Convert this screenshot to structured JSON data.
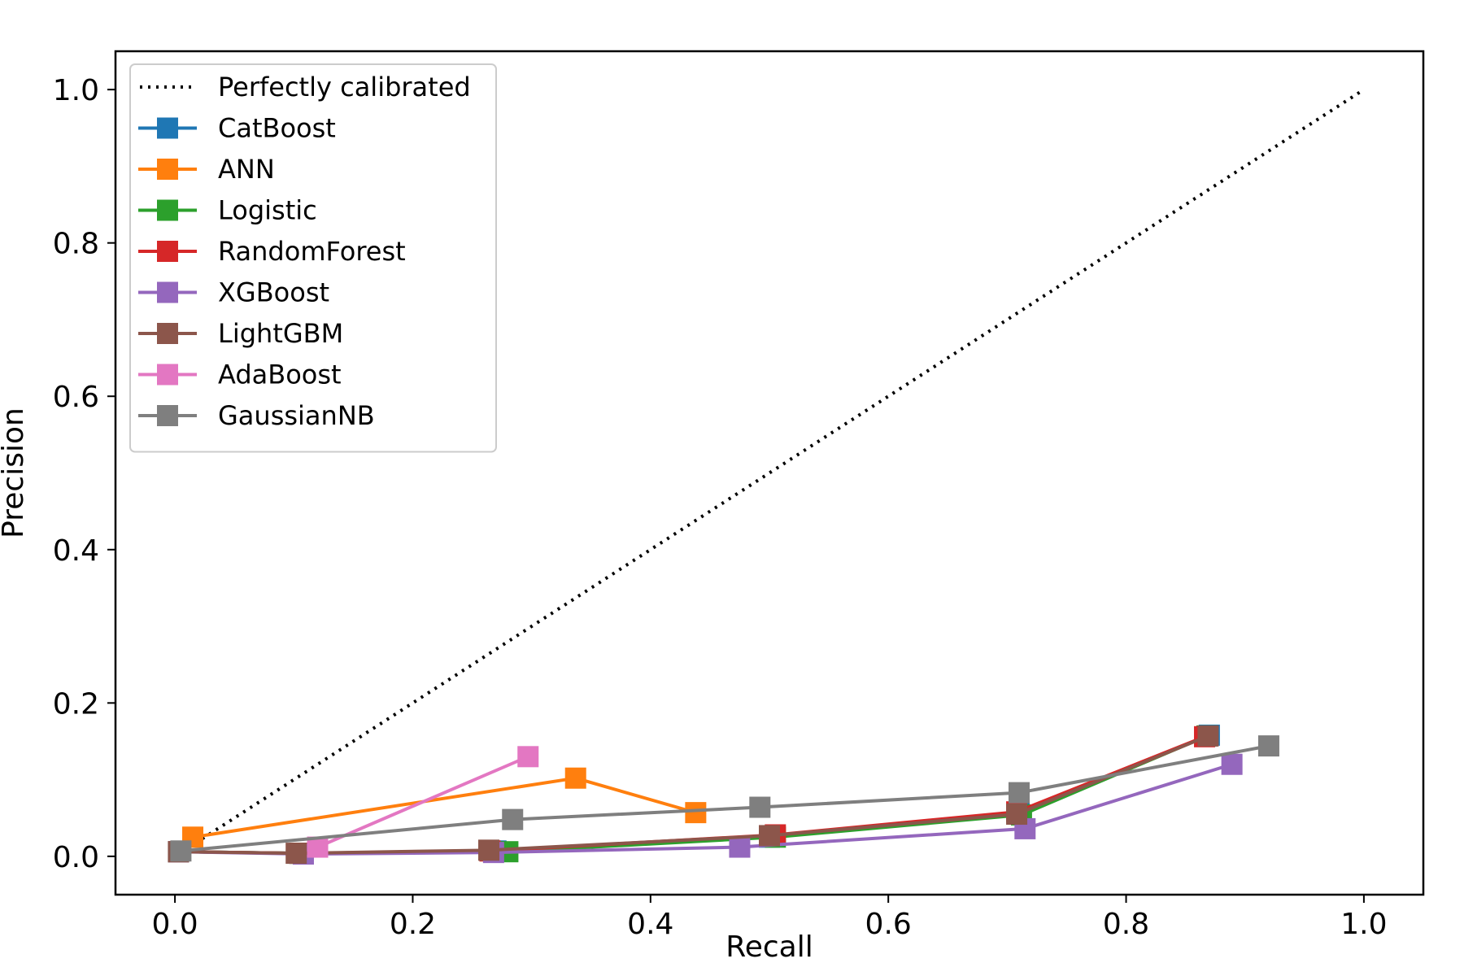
{
  "chart_data": {
    "type": "line",
    "title": "",
    "xlabel": "Recall",
    "ylabel": "Precision",
    "xlim": [
      -0.05,
      1.05
    ],
    "ylim": [
      -0.05,
      1.05
    ],
    "xticks": [
      0.0,
      0.2,
      0.4,
      0.6,
      0.8,
      1.0
    ],
    "yticks": [
      0.0,
      0.2,
      0.4,
      0.6,
      0.8,
      1.0
    ],
    "xtick_labels": [
      "0.0",
      "0.2",
      "0.4",
      "0.6",
      "0.8",
      "1.0"
    ],
    "ytick_labels": [
      "0.0",
      "0.2",
      "0.4",
      "0.6",
      "0.8",
      "1.0"
    ],
    "grid": false,
    "legend_position": "top-left",
    "reference": {
      "name": "Perfectly calibrated",
      "color": "#000000",
      "style": "dotted",
      "x": [
        0,
        1
      ],
      "y": [
        0,
        1
      ]
    },
    "series": [
      {
        "name": "CatBoost",
        "color": "#1f77b4",
        "x": [
          0.003,
          0.105,
          0.27,
          0.5,
          0.71,
          0.87
        ],
        "y": [
          0.006,
          0.004,
          0.007,
          0.025,
          0.056,
          0.158
        ]
      },
      {
        "name": "ANN",
        "color": "#ff7f0e",
        "x": [
          0.015,
          0.337,
          0.438
        ],
        "y": [
          0.025,
          0.102,
          0.057
        ]
      },
      {
        "name": "Logistic",
        "color": "#2ca02c",
        "x": [
          0.003,
          0.105,
          0.28,
          0.505,
          0.712,
          0.868
        ],
        "y": [
          0.006,
          0.004,
          0.006,
          0.025,
          0.054,
          0.157
        ]
      },
      {
        "name": "RandomForest",
        "color": "#d62728",
        "x": [
          0.003,
          0.105,
          0.265,
          0.505,
          0.708,
          0.866
        ],
        "y": [
          0.006,
          0.004,
          0.007,
          0.028,
          0.058,
          0.156
        ]
      },
      {
        "name": "XGBoost",
        "color": "#9467bd",
        "x": [
          0.003,
          0.108,
          0.268,
          0.475,
          0.715,
          0.889
        ],
        "y": [
          0.006,
          0.003,
          0.005,
          0.012,
          0.036,
          0.12
        ]
      },
      {
        "name": "LightGBM",
        "color": "#8c564b",
        "x": [
          0.003,
          0.102,
          0.264,
          0.5,
          0.708,
          0.869
        ],
        "y": [
          0.006,
          0.004,
          0.008,
          0.027,
          0.055,
          0.157
        ]
      },
      {
        "name": "AdaBoost",
        "color": "#e377c2",
        "x": [
          0.12,
          0.297
        ],
        "y": [
          0.012,
          0.13
        ]
      },
      {
        "name": "GaussianNB",
        "color": "#7f7f7f",
        "x": [
          0.005,
          0.284,
          0.492,
          0.71,
          0.92
        ],
        "y": [
          0.007,
          0.048,
          0.064,
          0.083,
          0.144
        ]
      }
    ]
  }
}
